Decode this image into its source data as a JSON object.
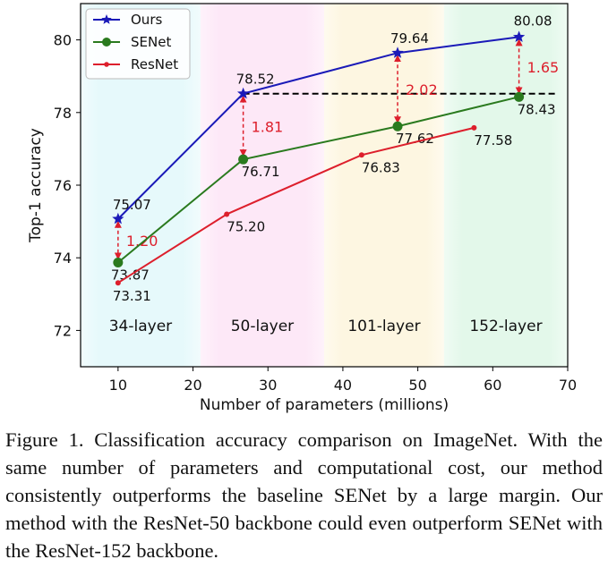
{
  "chart_data": {
    "type": "line",
    "xlabel": "Number of parameters (millions)",
    "ylabel": "Top-1 accuracy",
    "xlim": [
      5,
      70
    ],
    "ylim": [
      71,
      81
    ],
    "xticks": [
      "10",
      "20",
      "30",
      "40",
      "50",
      "60",
      "70"
    ],
    "yticks": [
      "72",
      "74",
      "76",
      "78",
      "80"
    ],
    "legend_position": "top-left",
    "series": [
      {
        "name": "Ours",
        "color": "#1a1ab8",
        "marker": "star",
        "x": [
          10.0,
          26.7,
          47.3,
          63.5
        ],
        "y": [
          75.07,
          78.52,
          79.64,
          80.08
        ],
        "labels": [
          "75.07",
          "78.52",
          "79.64",
          "80.08"
        ]
      },
      {
        "name": "SENet",
        "color": "#2a7a1e",
        "marker": "circle",
        "x": [
          10.0,
          26.7,
          47.3,
          63.5
        ],
        "y": [
          73.87,
          76.71,
          77.62,
          78.43
        ],
        "labels": [
          "73.87",
          "76.71",
          "77.62",
          "78.43"
        ]
      },
      {
        "name": "ResNet",
        "color": "#dd1f2c",
        "marker": "dot",
        "x": [
          10.0,
          24.5,
          42.5,
          57.5
        ],
        "y": [
          73.31,
          75.2,
          76.83,
          77.58
        ],
        "labels": [
          "73.31",
          "75.20",
          "76.83",
          "77.58"
        ]
      }
    ],
    "gaps": [
      {
        "x": 10.0,
        "y_low": 73.87,
        "y_high": 75.07,
        "label": "1.20"
      },
      {
        "x": 26.7,
        "y_low": 76.71,
        "y_high": 78.52,
        "label": "1.81"
      },
      {
        "x": 47.3,
        "y_low": 77.62,
        "y_high": 79.64,
        "label": "2.02"
      },
      {
        "x": 63.5,
        "y_low": 78.43,
        "y_high": 80.08,
        "label": "1.65"
      }
    ],
    "reference_line": {
      "y": 78.52,
      "x_from": 26.7,
      "x_to": 68.7,
      "style": "dashed",
      "color": "#000000"
    },
    "bands": [
      {
        "label": "34-layer",
        "x_from": 5,
        "x_to": 21,
        "color": "#e6f9fb"
      },
      {
        "label": "50-layer",
        "x_from": 21,
        "x_to": 37.5,
        "color": "#fde8f7"
      },
      {
        "label": "101-layer",
        "x_from": 37.5,
        "x_to": 53.5,
        "color": "#fdf6e1"
      },
      {
        "label": "152-layer",
        "x_from": 53.5,
        "x_to": 70,
        "color": "#e3f8ea"
      }
    ],
    "annotation_color": "#dd1f2c"
  },
  "caption": {
    "text": "Figure 1. Classification accuracy comparison on ImageNet. With the same number of parameters and computational cost, our method consistently outperforms the baseline SENet by a large margin.  Our method with the ResNet-50 backbone could even outperform SENet with the ResNet-152 backbone."
  }
}
